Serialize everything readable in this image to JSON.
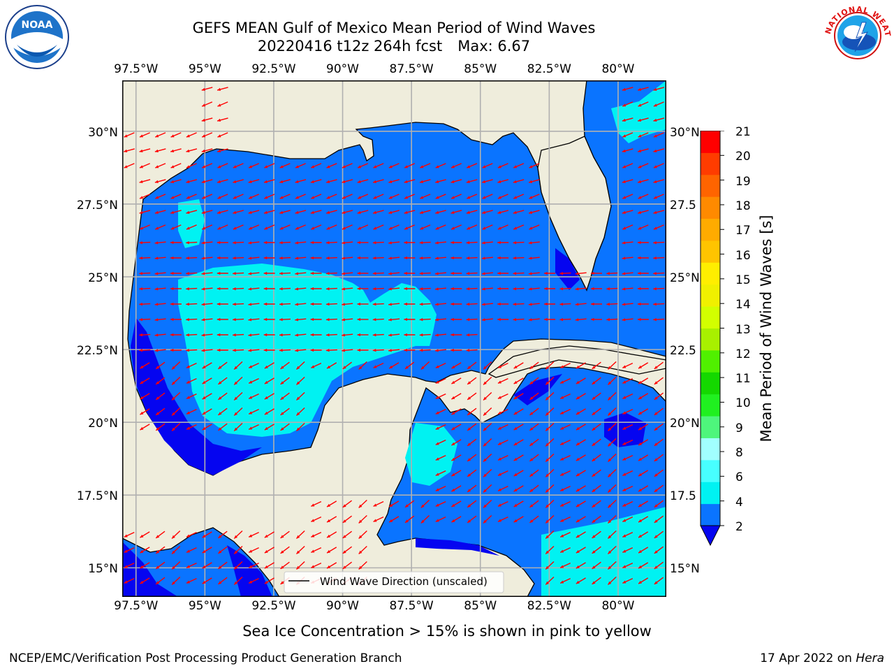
{
  "title": {
    "line1": "GEFS MEAN Gulf of Mexico Mean Period of Wind Waves",
    "line2_a": "20220416 t12z 264h fcst",
    "line2_b": "Max: 6.67"
  },
  "map": {
    "lon_labels": [
      "97.5°W",
      "95°W",
      "92.5°W",
      "90°W",
      "87.5°W",
      "85°W",
      "82.5°W",
      "80°W"
    ],
    "lat_labels_left": [
      "30°N",
      "27.5°N",
      "25°N",
      "22.5°N",
      "20°N",
      "17.5°N",
      "15°N"
    ],
    "lat_labels_right": [
      "30°N",
      "27.5",
      "25°N",
      "22.5",
      "20°N",
      "17.5",
      "15°N"
    ],
    "lon_range": [
      -98,
      -78.25
    ],
    "lat_range": [
      14,
      31.75
    ],
    "colors": {
      "land": "#efeddc",
      "period_2_4": "#0a74ff",
      "period_below_2": "#0505f0",
      "period_4_6": "#00f2f2",
      "arrow": "#ff0000"
    },
    "legend_text": "Wind Wave Direction (unscaled)"
  },
  "colorbar": {
    "label": "Mean Period of Wind Waves [s]",
    "ticks": [
      "21",
      "20",
      "19",
      "18",
      "17",
      "16",
      "15",
      "14",
      "13",
      "12",
      "11",
      "10",
      "9",
      "8",
      "6",
      "4",
      "2"
    ],
    "colors": [
      "#0a74ff",
      "#00f2f2",
      "#47ffff",
      "#a1ffff",
      "#4ef67c",
      "#20f020",
      "#14d800",
      "#50f000",
      "#a8f000",
      "#d2ff00",
      "#f0f000",
      "#ffee00",
      "#ffc400",
      "#ffab00",
      "#ff8a00",
      "#ff6400",
      "#ff3c00",
      "#ff0000"
    ],
    "under_color": "#0505f0"
  },
  "footer": {
    "note": "Sea Ice Concentration > 15% is shown in pink to yellow",
    "left": "NCEP/EMC/Verification Post Processing Product Generation Branch",
    "right_date": "17 Apr 2022 on",
    "right_host": "Hera"
  },
  "logos": {
    "noaa_text": "NOAA",
    "nws_text": "NATIONAL WEATHER SERVICE"
  }
}
